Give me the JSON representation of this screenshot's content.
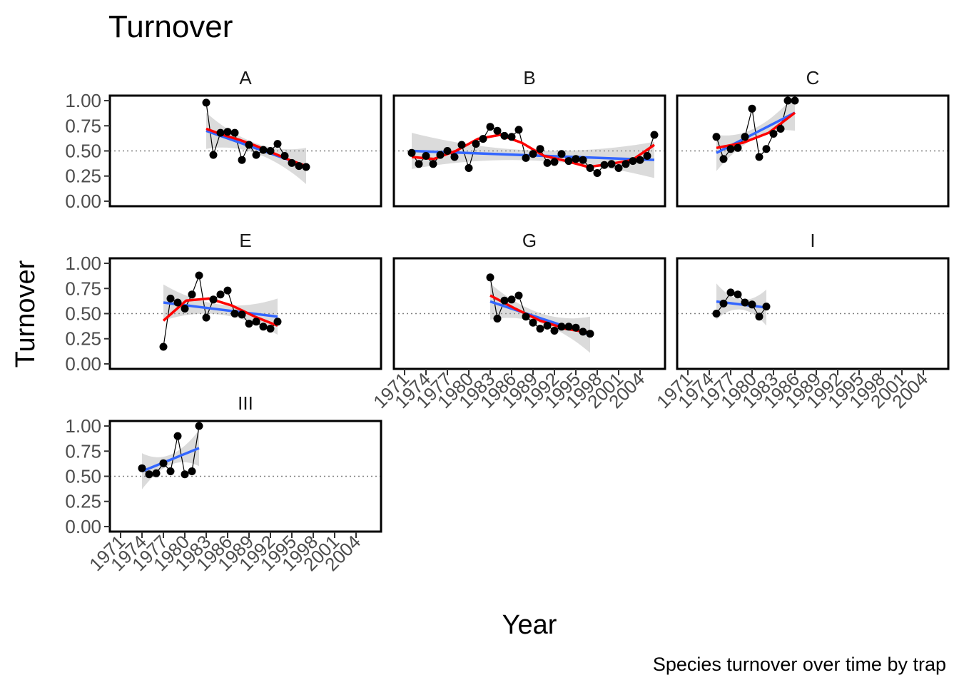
{
  "chart_data": {
    "type": "line",
    "title": "Turnover",
    "xlabel": "Year",
    "ylabel": "Turnover",
    "caption": "Species turnover over time by trap",
    "x_ticks": [
      "1971",
      "1974",
      "1977",
      "1980",
      "1983",
      "1986",
      "1989",
      "1992",
      "1995",
      "1998",
      "2001",
      "2004"
    ],
    "xlim": [
      1969.5,
      2007.5
    ],
    "y_ticks": [
      "0.00",
      "0.25",
      "0.50",
      "0.75",
      "1.00"
    ],
    "ylim": [
      0,
      1
    ],
    "reference_line": 0.5,
    "colors": {
      "points": "#000000",
      "linear_fit": "#3366FF",
      "loess_fit": "#FF0000",
      "ribbon": "#999999",
      "reference": "#808080"
    },
    "panels": [
      {
        "name": "A",
        "x": [
          1983,
          1984,
          1985,
          1986,
          1987,
          1988,
          1989,
          1990,
          1991,
          1992,
          1993,
          1994,
          1995,
          1996,
          1997
        ],
        "y": [
          0.98,
          0.46,
          0.68,
          0.69,
          0.68,
          0.41,
          0.56,
          0.46,
          0.51,
          0.5,
          0.57,
          0.45,
          0.38,
          0.35,
          0.34
        ],
        "linear": [
          0.7,
          0.35
        ],
        "loess": [
          0.72,
          0.66,
          0.61,
          0.55,
          0.48,
          0.41,
          0.35
        ]
      },
      {
        "name": "B",
        "x": [
          1972,
          1973,
          1974,
          1975,
          1976,
          1977,
          1978,
          1979,
          1980,
          1981,
          1982,
          1983,
          1984,
          1985,
          1986,
          1987,
          1988,
          1989,
          1990,
          1991,
          1992,
          1993,
          1994,
          1995,
          1996,
          1997,
          1998,
          1999,
          2000,
          2001,
          2002,
          2003,
          2004,
          2005,
          2006
        ],
        "y": [
          0.48,
          0.37,
          0.45,
          0.37,
          0.46,
          0.5,
          0.44,
          0.56,
          0.33,
          0.57,
          0.62,
          0.74,
          0.7,
          0.65,
          0.64,
          0.71,
          0.43,
          0.47,
          0.52,
          0.38,
          0.39,
          0.47,
          0.4,
          0.42,
          0.41,
          0.33,
          0.28,
          0.36,
          0.37,
          0.33,
          0.37,
          0.4,
          0.41,
          0.45,
          0.66
        ],
        "linear": [
          0.5,
          0.41
        ],
        "loess": [
          0.44,
          0.42,
          0.5,
          0.62,
          0.66,
          0.58,
          0.45,
          0.4,
          0.34,
          0.37,
          0.41,
          0.56
        ]
      },
      {
        "name": "C",
        "x": [
          1975,
          1976,
          1977,
          1978,
          1979,
          1980,
          1981,
          1982,
          1983,
          1984,
          1985,
          1986
        ],
        "y": [
          0.64,
          0.42,
          0.52,
          0.53,
          0.64,
          0.92,
          0.44,
          0.52,
          0.67,
          0.72,
          1.0,
          1.0
        ],
        "linear": [
          0.48,
          0.88
        ],
        "loess": [
          0.53,
          0.58,
          0.68,
          0.88
        ]
      },
      {
        "name": "E",
        "x": [
          1977,
          1978,
          1979,
          1980,
          1981,
          1982,
          1983,
          1984,
          1985,
          1986,
          1987,
          1988,
          1989,
          1990,
          1991,
          1992,
          1993
        ],
        "y": [
          0.17,
          0.65,
          0.61,
          0.55,
          0.69,
          0.88,
          0.46,
          0.64,
          0.69,
          0.73,
          0.5,
          0.49,
          0.4,
          0.42,
          0.37,
          0.35,
          0.42
        ],
        "linear": [
          0.61,
          0.47
        ],
        "loess": [
          0.43,
          0.63,
          0.65,
          0.58,
          0.47,
          0.38
        ]
      },
      {
        "name": "G",
        "x": [
          1983,
          1984,
          1985,
          1986,
          1987,
          1988,
          1989,
          1990,
          1991,
          1992,
          1993,
          1994,
          1995,
          1996,
          1997
        ],
        "y": [
          0.86,
          0.45,
          0.63,
          0.64,
          0.68,
          0.47,
          0.41,
          0.35,
          0.38,
          0.33,
          0.37,
          0.37,
          0.36,
          0.32,
          0.3
        ],
        "linear": [
          0.62,
          0.29
        ],
        "loess": [
          0.68,
          0.55,
          0.43,
          0.35,
          0.31
        ]
      },
      {
        "name": "I",
        "x": [
          1975,
          1976,
          1977,
          1978,
          1979,
          1980,
          1981,
          1982
        ],
        "y": [
          0.5,
          0.6,
          0.71,
          0.69,
          0.61,
          0.59,
          0.47,
          0.57
        ],
        "linear": [
          0.62,
          0.56
        ],
        "loess": []
      },
      {
        "name": "III",
        "x": [
          1974,
          1975,
          1976,
          1977,
          1978,
          1979,
          1980,
          1981,
          1982
        ],
        "y": [
          0.58,
          0.52,
          0.53,
          0.63,
          0.55,
          0.9,
          0.52,
          0.55,
          1.0
        ],
        "linear": [
          0.55,
          0.78
        ],
        "loess": []
      }
    ]
  }
}
